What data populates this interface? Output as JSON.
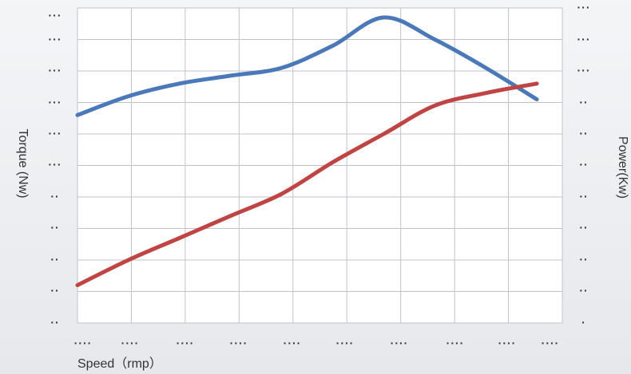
{
  "chart_data": {
    "type": "line",
    "xlabel": "Speed（rmp）",
    "ylabel_left": "Torque (Nw)",
    "ylabel_right": "Power(Kw)",
    "x_tick_labels": [
      "····",
      "····",
      "····",
      "····",
      "····",
      "····",
      "····",
      "····",
      "····",
      "····"
    ],
    "y_left_tick_labels": [
      "···",
      "···",
      "···",
      "···",
      "···",
      "···",
      "··",
      "··",
      "··",
      "··",
      "··"
    ],
    "y_right_tick_labels": [
      "···",
      "···",
      "···",
      "··",
      "··",
      "··",
      "··",
      "··",
      "··",
      "··",
      "·"
    ],
    "x": [
      0,
      1,
      2,
      3,
      4,
      5,
      6,
      7,
      8,
      9
    ],
    "xlim": [
      0,
      9.5
    ],
    "ylim": [
      0,
      10
    ],
    "grid": true,
    "series": [
      {
        "color": "#4a78b8",
        "axis": "left",
        "values": [
          6.6,
          7.2,
          7.6,
          7.85,
          8.1,
          8.8,
          9.7,
          9.0,
          8.1,
          7.1
        ]
      },
      {
        "color": "#bf4545",
        "axis": "right",
        "values": [
          1.2,
          2.0,
          2.7,
          3.4,
          4.1,
          5.1,
          6.0,
          6.9,
          7.3,
          7.6
        ]
      }
    ]
  }
}
